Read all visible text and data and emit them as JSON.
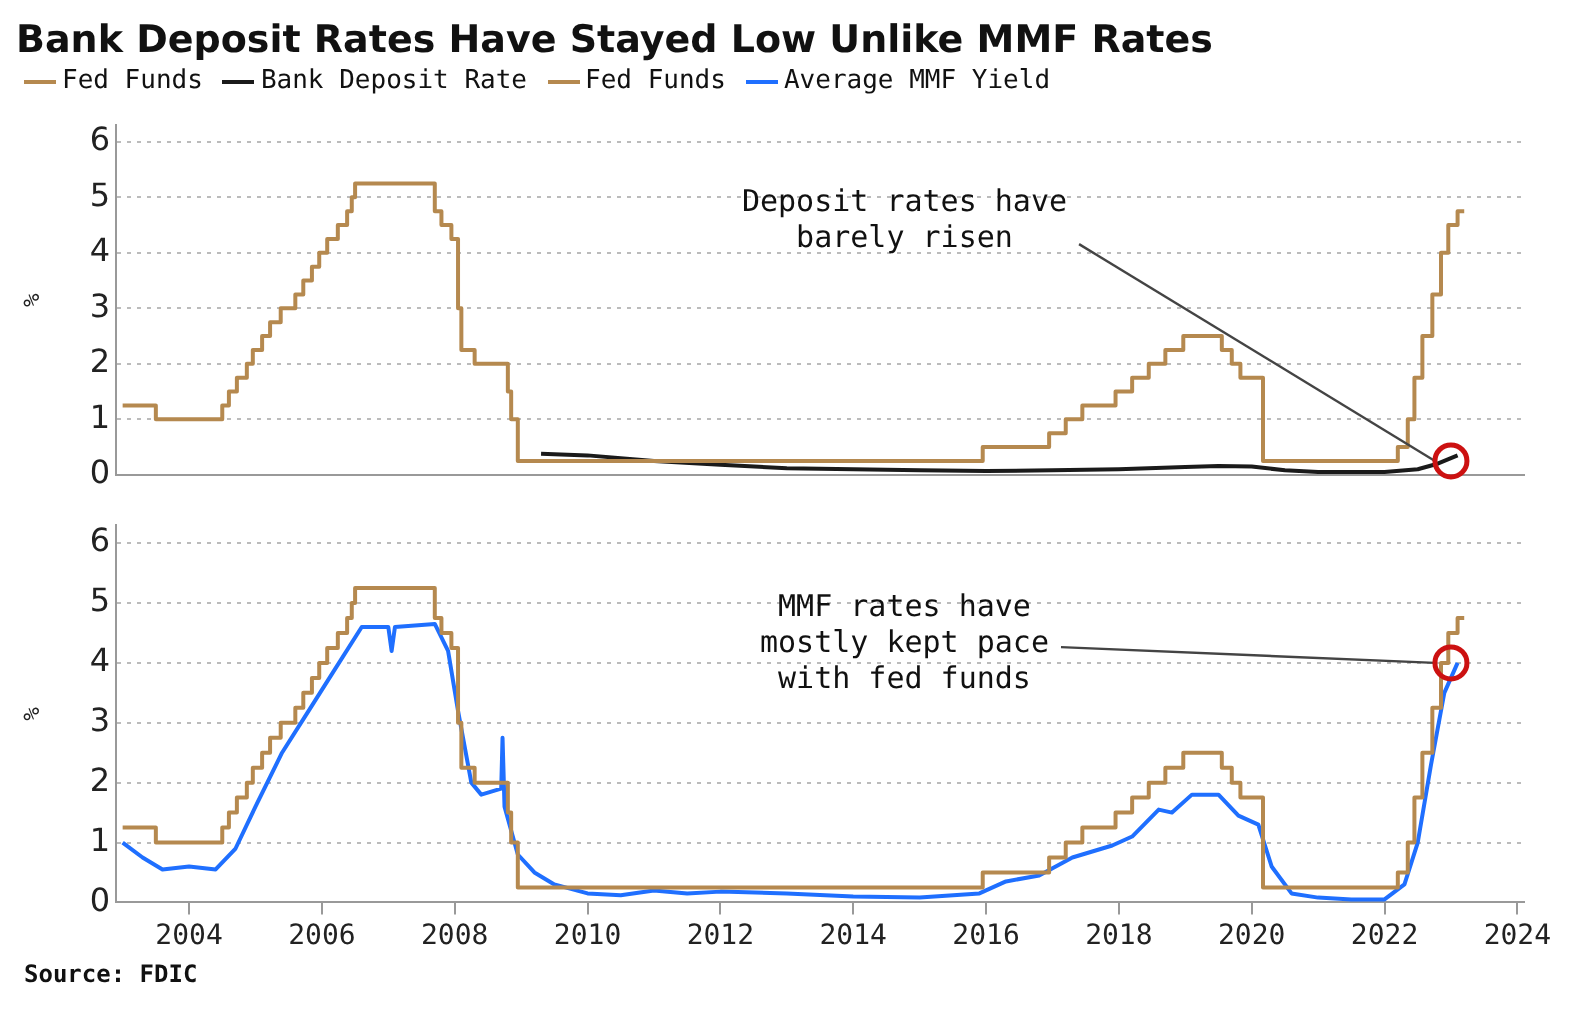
{
  "chart_data": [
    {
      "type": "step",
      "title": "Bank Deposit Rates Have Stayed Low Unlike MMF Rates",
      "ylabel": "%",
      "xlim": [
        2002.9,
        2024.1
      ],
      "xticks": [
        2004,
        2006,
        2008,
        2010,
        2012,
        2014,
        2016,
        2018,
        2020,
        2022,
        2024
      ],
      "ylim": [
        0,
        6.3
      ],
      "yticks": [
        0,
        1,
        2,
        3,
        4,
        5,
        6
      ],
      "grid": "y",
      "legend": "top",
      "tick_labels": "y",
      "annotations": [
        {
          "text": "Deposit rates have barely risen",
          "x": 2023.0,
          "y": 0.25
        }
      ],
      "series": [
        {
          "name": "Fed Funds",
          "color": "#b5894f",
          "x": [
            2003.0,
            2003.5,
            2004.5,
            2004.6,
            2004.72,
            2004.87,
            2004.96,
            2005.1,
            2005.22,
            2005.38,
            2005.6,
            2005.72,
            2005.85,
            2005.96,
            2006.08,
            2006.24,
            2006.38,
            2006.45,
            2006.5,
            2007.7,
            2007.8,
            2007.95,
            2008.05,
            2008.1,
            2008.3,
            2008.8,
            2008.85,
            2008.95,
            2015.95,
            2016.95,
            2017.2,
            2017.45,
            2017.95,
            2018.2,
            2018.45,
            2018.7,
            2018.97,
            2019.55,
            2019.7,
            2019.83,
            2020.17,
            2022.2,
            2022.35,
            2022.45,
            2022.57,
            2022.72,
            2022.85,
            2022.96,
            2023.1,
            2023.2
          ],
          "values": [
            1.25,
            1.0,
            1.25,
            1.5,
            1.75,
            2.0,
            2.25,
            2.5,
            2.75,
            3.0,
            3.25,
            3.5,
            3.75,
            4.0,
            4.25,
            4.5,
            4.75,
            5.0,
            5.25,
            4.75,
            4.5,
            4.25,
            3.0,
            2.25,
            2.0,
            1.5,
            1.0,
            0.25,
            0.5,
            0.75,
            1.0,
            1.25,
            1.5,
            1.75,
            2.0,
            2.25,
            2.5,
            2.25,
            2.0,
            1.75,
            0.25,
            0.5,
            1.0,
            1.75,
            2.5,
            3.25,
            4.0,
            4.5,
            4.75,
            4.75
          ]
        },
        {
          "name": "Bank Deposit Rate",
          "type": "line",
          "color": "#1a1a1a",
          "x": [
            2009.3,
            2010,
            2011,
            2012,
            2013,
            2014,
            2015,
            2016,
            2017,
            2018,
            2019,
            2019.5,
            2020,
            2020.5,
            2021,
            2022,
            2022.5,
            2022.8,
            2023.1
          ],
          "values": [
            0.38,
            0.35,
            0.25,
            0.18,
            0.12,
            0.1,
            0.08,
            0.07,
            0.08,
            0.1,
            0.14,
            0.16,
            0.15,
            0.08,
            0.05,
            0.05,
            0.1,
            0.2,
            0.35
          ]
        }
      ]
    },
    {
      "type": "step",
      "xlim": [
        2002.9,
        2024.1
      ],
      "xticks": [
        2004,
        2006,
        2008,
        2010,
        2012,
        2014,
        2016,
        2018,
        2020,
        2022,
        2024
      ],
      "ylim": [
        0,
        6.3
      ],
      "yticks": [
        0,
        1,
        2,
        3,
        4,
        5,
        6
      ],
      "ylabel": "%",
      "grid": "y",
      "legend": "top",
      "annotations": [
        {
          "text": "MMF rates have mostly kept pace with fed funds",
          "x": 2023.0,
          "y": 4.0
        },
        "Source: FDIC"
      ],
      "series": [
        {
          "name": "Fed Funds",
          "color": "#b5894f",
          "x": [
            2003.0,
            2003.5,
            2004.5,
            2004.6,
            2004.72,
            2004.87,
            2004.96,
            2005.1,
            2005.22,
            2005.38,
            2005.6,
            2005.72,
            2005.85,
            2005.96,
            2006.08,
            2006.24,
            2006.38,
            2006.45,
            2006.5,
            2007.7,
            2007.8,
            2007.95,
            2008.05,
            2008.1,
            2008.3,
            2008.8,
            2008.85,
            2008.95,
            2015.95,
            2016.95,
            2017.2,
            2017.45,
            2017.95,
            2018.2,
            2018.45,
            2018.7,
            2018.97,
            2019.55,
            2019.7,
            2019.83,
            2020.17,
            2022.2,
            2022.35,
            2022.45,
            2022.57,
            2022.72,
            2022.85,
            2022.96,
            2023.1,
            2023.2
          ],
          "values": [
            1.25,
            1.0,
            1.25,
            1.5,
            1.75,
            2.0,
            2.25,
            2.5,
            2.75,
            3.0,
            3.25,
            3.5,
            3.75,
            4.0,
            4.25,
            4.5,
            4.75,
            5.0,
            5.25,
            4.75,
            4.5,
            4.25,
            3.0,
            2.25,
            2.0,
            1.5,
            1.0,
            0.25,
            0.5,
            0.75,
            1.0,
            1.25,
            1.5,
            1.75,
            2.0,
            2.25,
            2.5,
            2.25,
            2.0,
            1.75,
            0.25,
            0.5,
            1.0,
            1.75,
            2.5,
            3.25,
            4.0,
            4.5,
            4.75,
            4.75
          ]
        },
        {
          "name": "Average MMF Yield",
          "type": "line",
          "color": "#1f6fff",
          "x": [
            2003,
            2003.3,
            2003.6,
            2004,
            2004.4,
            2004.7,
            2005,
            2005.4,
            2005.8,
            2006.2,
            2006.6,
            2007,
            2007.05,
            2007.1,
            2007.7,
            2007.9,
            2008.05,
            2008.25,
            2008.4,
            2008.7,
            2008.72,
            2008.75,
            2008.95,
            2009.2,
            2009.5,
            2010,
            2010.5,
            2011,
            2011.5,
            2012,
            2013,
            2014,
            2015,
            2015.9,
            2016.3,
            2016.8,
            2017.3,
            2017.9,
            2018.2,
            2018.6,
            2018.8,
            2019.1,
            2019.5,
            2019.8,
            2020.1,
            2020.3,
            2020.6,
            2021,
            2021.5,
            2022,
            2022.3,
            2022.5,
            2022.7,
            2022.9,
            2023.1
          ],
          "values": [
            1.0,
            0.75,
            0.55,
            0.6,
            0.55,
            0.9,
            1.6,
            2.5,
            3.2,
            3.9,
            4.6,
            4.6,
            4.2,
            4.6,
            4.65,
            4.2,
            3.2,
            2.0,
            1.8,
            1.9,
            2.75,
            1.6,
            0.8,
            0.5,
            0.3,
            0.15,
            0.12,
            0.2,
            0.15,
            0.18,
            0.15,
            0.1,
            0.08,
            0.15,
            0.35,
            0.45,
            0.75,
            0.95,
            1.1,
            1.55,
            1.5,
            1.8,
            1.8,
            1.45,
            1.3,
            0.6,
            0.15,
            0.08,
            0.05,
            0.05,
            0.3,
            1.0,
            2.3,
            3.5,
            4.0
          ]
        }
      ]
    }
  ]
}
